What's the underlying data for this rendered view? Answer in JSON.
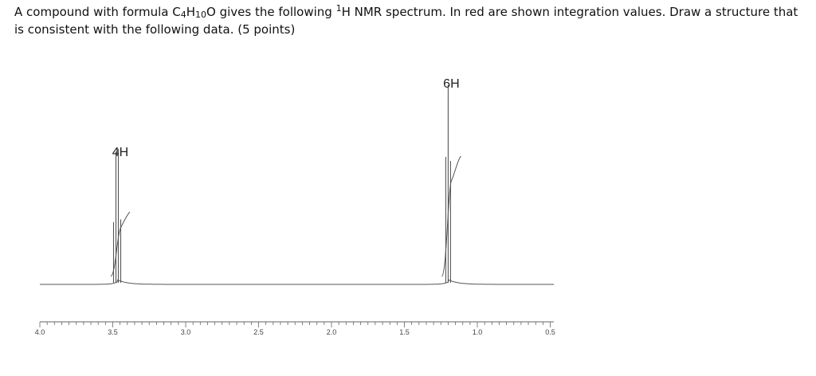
{
  "question": {
    "part1": "A compound with formula C",
    "sub1": "4",
    "part2": "H",
    "sub2": "10",
    "part3": "O gives the following ",
    "sup1": "1",
    "part4": "H NMR spectrum.  In red are shown integration values.  Draw a structure that is consistent with the following data.  (5 points)"
  },
  "chart_data": {
    "type": "line",
    "title": "",
    "xlabel": "",
    "ylabel": "",
    "x_reversed": true,
    "xlim": [
      4.0,
      0.0
    ],
    "tick_labels": [
      "4.0",
      "3.5",
      "3.0",
      "2.5",
      "2.0",
      "1.5",
      "1.0",
      "0.5"
    ],
    "tick_values": [
      4.0,
      3.5,
      3.0,
      2.5,
      2.0,
      1.5,
      1.0,
      0.5
    ],
    "peaks": [
      {
        "shift": 3.47,
        "multiplicity": "quartet",
        "integration": "4H"
      },
      {
        "shift": 1.2,
        "multiplicity": "triplet",
        "integration": "6H"
      }
    ],
    "line_color": "#555555"
  }
}
